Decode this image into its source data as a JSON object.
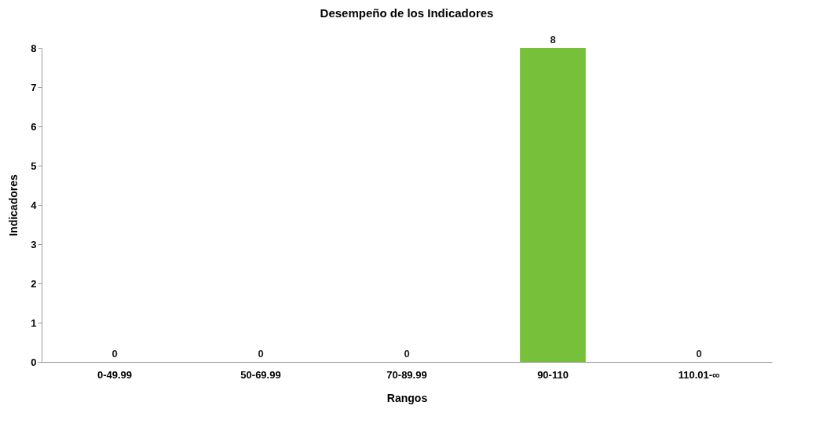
{
  "chart_data": {
    "type": "bar",
    "title": "Desempeño de los Indicadores",
    "xlabel": "Rangos",
    "ylabel": "Indicadores",
    "categories": [
      "0-49.99",
      "50-69.99",
      "70-89.99",
      "90-110",
      "110.01-∞"
    ],
    "values": [
      0,
      0,
      0,
      8,
      0
    ],
    "colors": [
      "#cc0000",
      "#cc9900",
      "#cccc00",
      "#77c13a",
      "#5b2d8e"
    ],
    "ylim": [
      0,
      8
    ],
    "yticks": [
      0,
      1,
      2,
      3,
      4,
      5,
      6,
      7,
      8
    ],
    "grid": false,
    "legend": false,
    "data_labels": true
  }
}
